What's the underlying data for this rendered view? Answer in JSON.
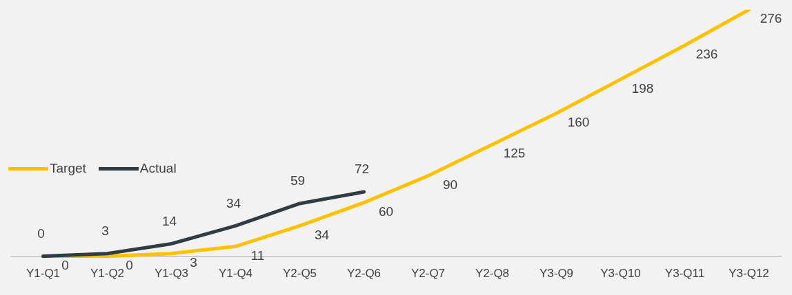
{
  "chart_data": {
    "type": "line",
    "categories": [
      "Y1-Q1",
      "Y1-Q2",
      "Y1-Q3",
      "Y1-Q4",
      "Y2-Q5",
      "Y2-Q6",
      "Y2-Q7",
      "Y2-Q8",
      "Y3-Q9",
      "Y3-Q10",
      "Y3-Q11",
      "Y3-Q12"
    ],
    "series": [
      {
        "name": "Target",
        "color": "#ffc000",
        "values": [
          0,
          0,
          3,
          11,
          34,
          60,
          90,
          125,
          160,
          198,
          236,
          276
        ]
      },
      {
        "name": "Actual",
        "color": "#2f3c45",
        "values": [
          0,
          3,
          14,
          34,
          59,
          72,
          null,
          null,
          null,
          null,
          null,
          null
        ]
      }
    ],
    "data_labels": true,
    "legend": "left",
    "marker": "none",
    "line_style": "solid",
    "grid": false,
    "tick_labels": "x"
  }
}
